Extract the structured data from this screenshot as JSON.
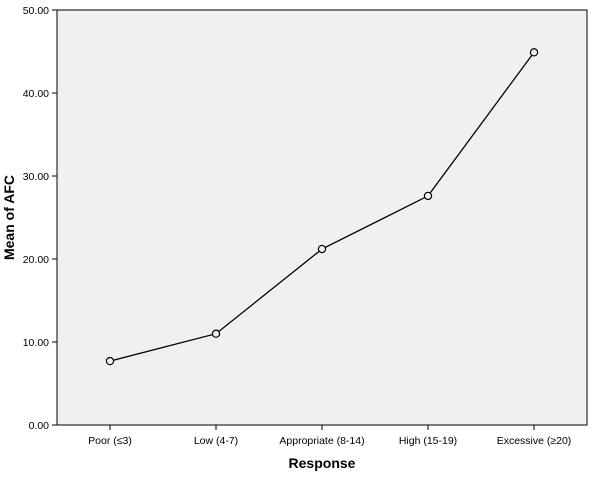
{
  "chart_data": {
    "type": "line",
    "title": "",
    "xlabel": "Response",
    "ylabel": "Mean of AFC",
    "categories": [
      "Poor (≤3)",
      "Low (4-7)",
      "Appropriate (8-14)",
      "High (15-19)",
      "Excessive (≥20)"
    ],
    "series": [
      {
        "values": [
          7.7,
          11.0,
          21.2,
          27.6,
          44.9
        ]
      }
    ],
    "ylim": [
      0,
      50
    ],
    "yticks": [
      "0.00",
      "10.00",
      "20.00",
      "30.00",
      "40.00",
      "50.00"
    ],
    "grid": false,
    "legend": "none",
    "marker": "open-circle",
    "colors": {
      "plot_background": "#f0f0f0",
      "line": "#000000",
      "axis": "#000000"
    }
  }
}
